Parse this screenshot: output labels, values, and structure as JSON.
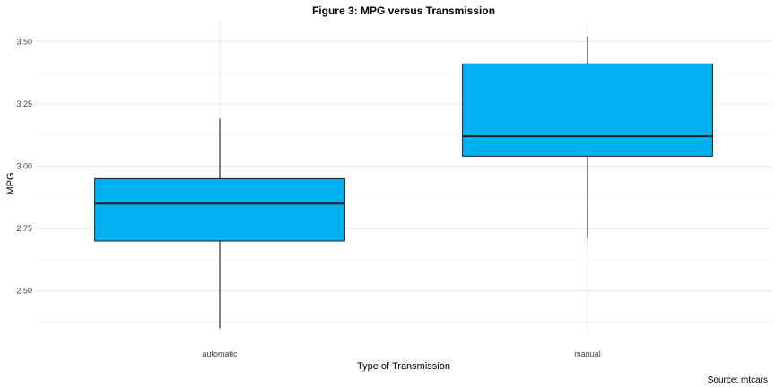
{
  "chart_data": {
    "type": "boxplot",
    "title": "Figure 3: MPG versus Transmission",
    "xlabel": "Type of Transmission",
    "ylabel": "MPG",
    "caption": "Source: mtcars",
    "categories": [
      "automatic",
      "manual"
    ],
    "boxes": [
      {
        "category": "automatic",
        "whisker_low": 2.35,
        "q1": 2.7,
        "median": 2.85,
        "q3": 2.95,
        "whisker_high": 3.19
      },
      {
        "category": "manual",
        "whisker_low": 2.71,
        "q1": 3.04,
        "median": 3.12,
        "q3": 3.41,
        "whisker_high": 3.52
      }
    ],
    "yticks": [
      2.5,
      2.75,
      3.0,
      3.25,
      3.5
    ],
    "ytick_labels": [
      "2.50",
      "2.75",
      "3.00",
      "3.25",
      "3.50"
    ],
    "ylim": [
      2.33,
      3.58
    ],
    "fill_color": "#00b0f0",
    "grid": true,
    "legend": "none"
  }
}
